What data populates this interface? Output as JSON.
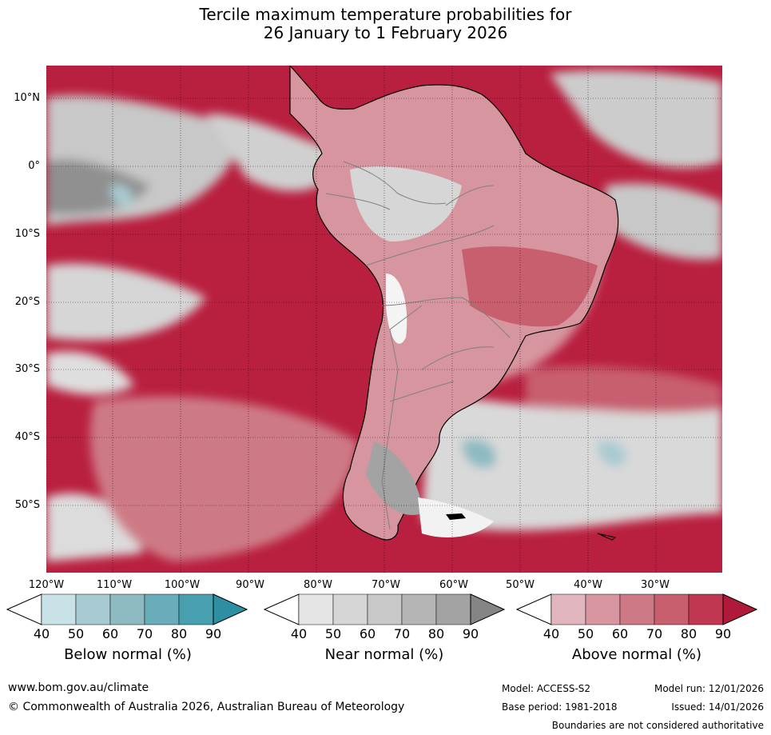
{
  "title": {
    "line1": "Tercile maximum temperature probabilities for",
    "line2": "26 January to 1 February 2026"
  },
  "colors": {
    "above": [
      "#e0b5bd",
      "#d7969f",
      "#ce7a86",
      "#c85f6f",
      "#bf3750",
      "#af1a3b"
    ],
    "near": [
      "#e5e5e5",
      "#d6d6d6",
      "#c8c8c8",
      "#b5b5b5",
      "#a3a3a3",
      "#858585"
    ],
    "below": [
      "#c9e2e8",
      "#a8cbd1",
      "#8ebac2",
      "#6aadba",
      "#479fb0",
      "#2e8fa3"
    ],
    "ocean_base": "#b91f3f",
    "land_border": "#000000",
    "country_border": "#808080"
  },
  "map": {
    "lat_labels": [
      "10°N",
      "0°",
      "10°S",
      "20°S",
      "30°S",
      "40°S",
      "50°S"
    ],
    "lon_labels": [
      "120°W",
      "110°W",
      "100°W",
      "90°W",
      "80°W",
      "70°W",
      "60°W",
      "50°W",
      "40°W",
      "30°W"
    ]
  },
  "colorbars": [
    {
      "label": "Below normal (%)",
      "ticks": [
        "40",
        "50",
        "60",
        "70",
        "80",
        "90"
      ],
      "key": "below"
    },
    {
      "label": "Near normal (%)",
      "ticks": [
        "40",
        "50",
        "60",
        "70",
        "80",
        "90"
      ],
      "key": "near"
    },
    {
      "label": "Above normal (%)",
      "ticks": [
        "40",
        "50",
        "60",
        "70",
        "80",
        "90"
      ],
      "key": "above"
    }
  ],
  "footer": {
    "url": "www.bom.gov.au/climate",
    "copyright": "© Commonwealth of Australia 2026, Australian Bureau of Meteorology",
    "model": "Model: ACCESS-S2",
    "base_period": "Base period: 1981-2018",
    "model_run": "Model run: 12/01/2026",
    "issued": "Issued: 14/01/2026",
    "disclaimer": "Boundaries are not considered authoritative"
  }
}
